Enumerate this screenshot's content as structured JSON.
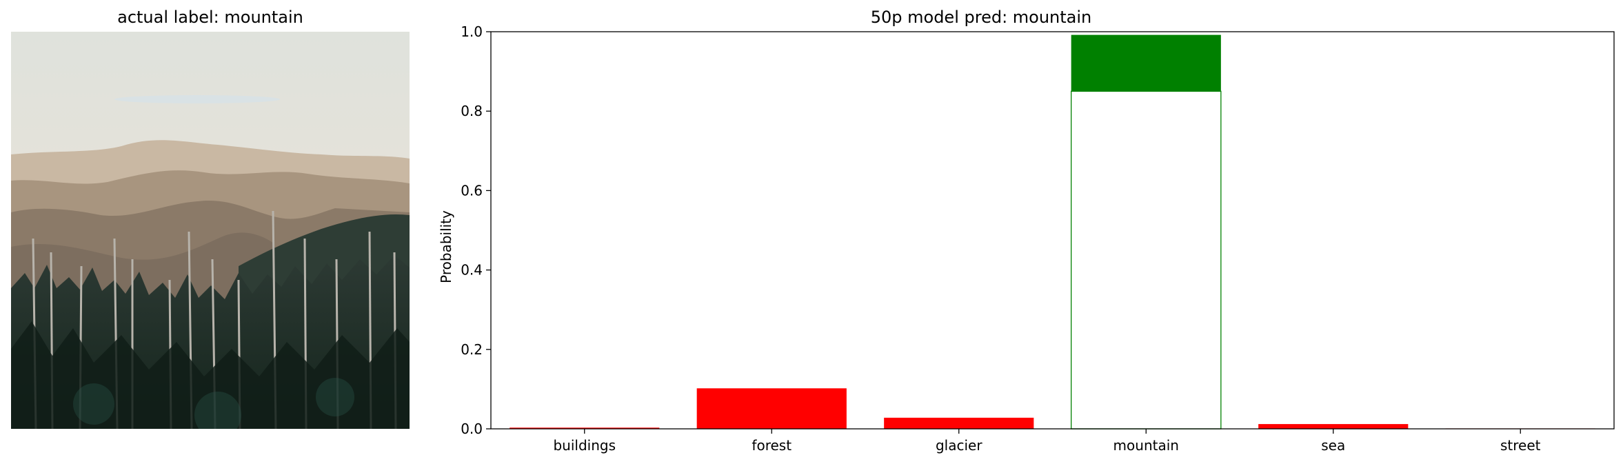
{
  "image_panel": {
    "title": "actual label: mountain"
  },
  "chart_data": {
    "type": "bar",
    "title": "50p model pred: mountain",
    "xlabel": "",
    "ylabel": "Probability",
    "ylim": [
      0,
      1.0
    ],
    "yticks": [
      "0.0",
      "0.2",
      "0.4",
      "0.6",
      "0.8",
      "1.0"
    ],
    "categories": [
      "buildings",
      "forest",
      "glacier",
      "mountain",
      "sea",
      "street"
    ],
    "values": [
      0.003,
      0.102,
      0.028,
      0.992,
      0.012,
      0.001
    ],
    "highlight_band": {
      "category": "mountain",
      "low": 0.0,
      "high": 0.85
    },
    "colors": {
      "wrong": "#ff0000",
      "correct": "#008000",
      "outline": "#008000"
    }
  }
}
